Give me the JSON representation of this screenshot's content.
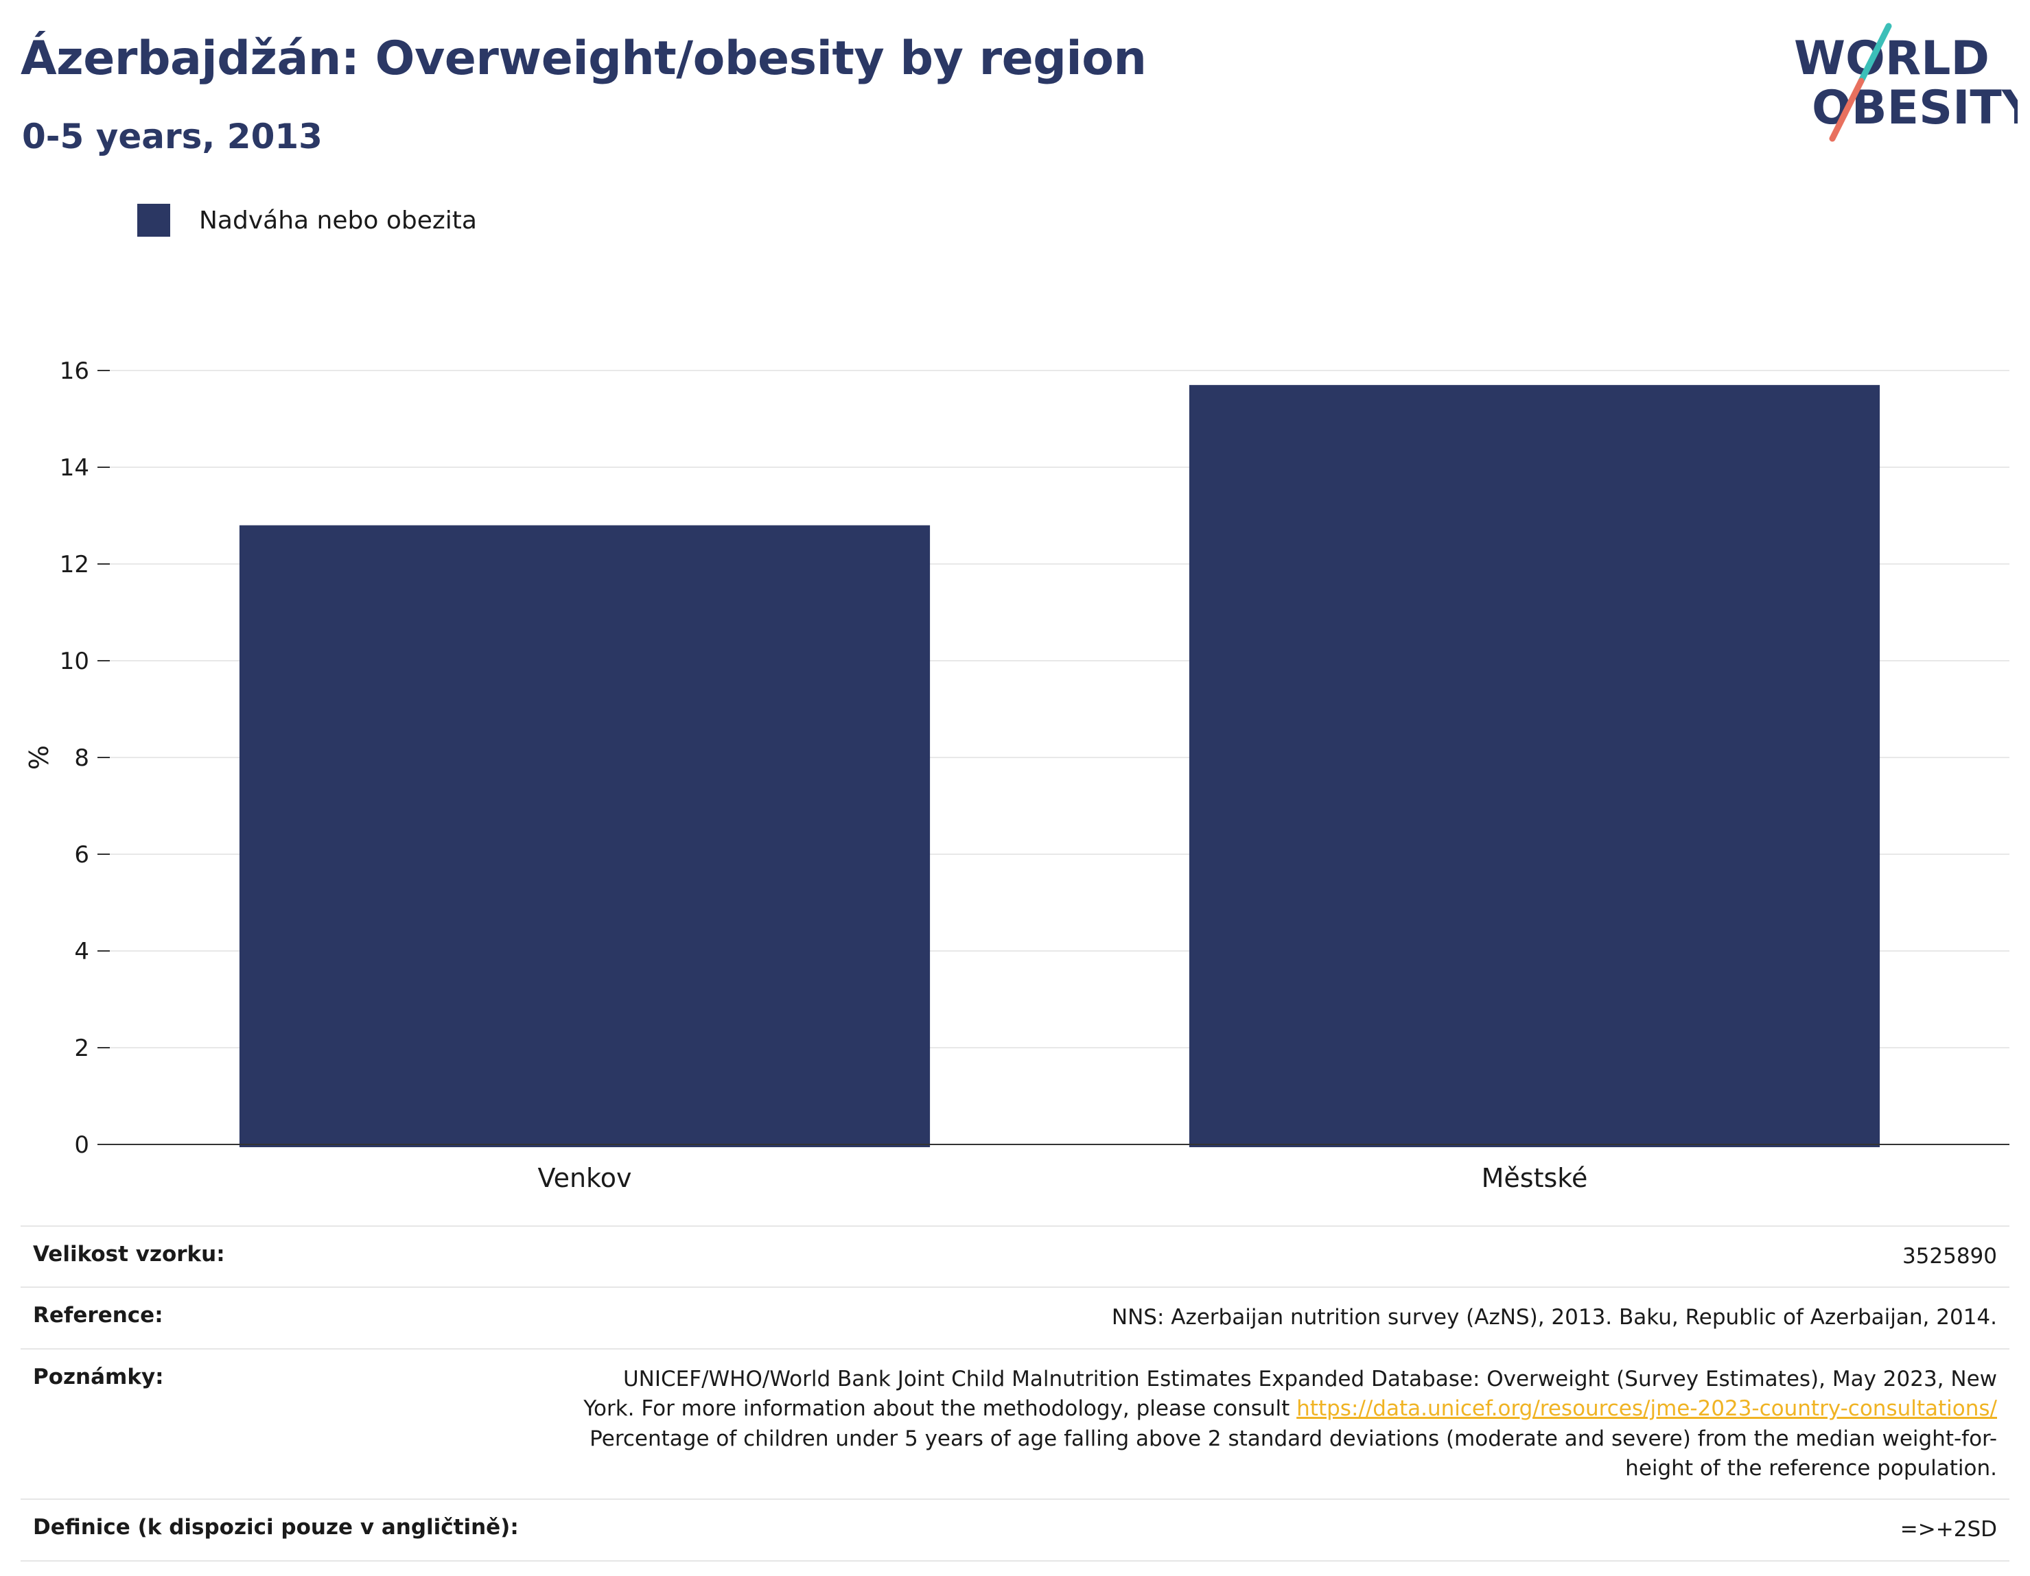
{
  "title": "Ázerbajdžán: Overweight/obesity by region",
  "subtitle": "0-5 years, 2013",
  "logo": {
    "line1": "WORLD",
    "line2": "OBESITY"
  },
  "colors": {
    "bar": "#2b3763",
    "title": "#2b3865",
    "link": "#f0b323",
    "logo_teal": "#3bbfb8",
    "logo_coral": "#e8705e"
  },
  "chart_data": {
    "type": "bar",
    "categories": [
      "Venkov",
      "Městské"
    ],
    "series": [
      {
        "name": "Nadváha nebo obezita",
        "values": [
          12.8,
          15.7
        ]
      }
    ],
    "ylabel": "%",
    "xlabel": "",
    "ylim": [
      0,
      16
    ],
    "yticks": [
      0,
      2,
      4,
      6,
      8,
      10,
      12,
      14,
      16
    ],
    "grid": true,
    "legend": "top-left"
  },
  "info": [
    {
      "key": "Velikost vzorku:",
      "value": "3525890"
    },
    {
      "key": "Reference:",
      "value": "NNS: Azerbaijan nutrition survey (AzNS), 2013. Baku, Republic of Azerbaijan, 2014."
    },
    {
      "key": "Poznámky:",
      "value_pre": "UNICEF/WHO/World Bank Joint Child Malnutrition Estimates Expanded Database: Overweight (Survey Estimates), May 2023, New York. For more information about the methodology, please consult",
      "link": "https://data.unicef.org/resources/jme-2023-country-consultations/",
      "value_post": "Percentage of children under 5 years of age falling above 2 standard deviations (moderate and severe) from the median weight-for-height of the reference population."
    },
    {
      "key": "Definice (k dispozici pouze v angličtině):",
      "value": "=>+2SD"
    }
  ]
}
